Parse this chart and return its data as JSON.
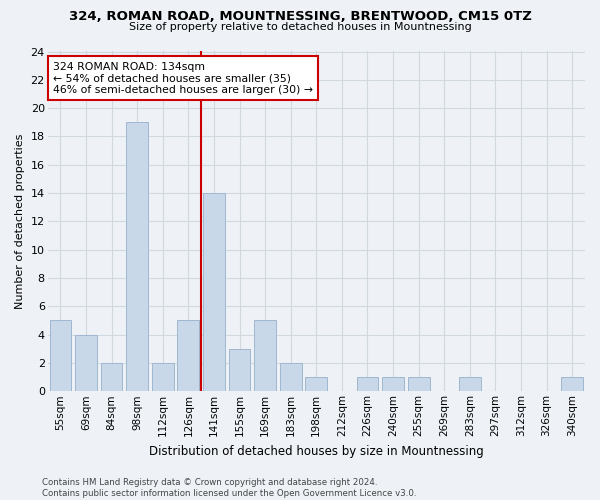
{
  "title1": "324, ROMAN ROAD, MOUNTNESSING, BRENTWOOD, CM15 0TZ",
  "title2": "Size of property relative to detached houses in Mountnessing",
  "xlabel_actual": "Distribution of detached houses by size in Mountnessing",
  "ylabel": "Number of detached properties",
  "categories": [
    "55sqm",
    "69sqm",
    "84sqm",
    "98sqm",
    "112sqm",
    "126sqm",
    "141sqm",
    "155sqm",
    "169sqm",
    "183sqm",
    "198sqm",
    "212sqm",
    "226sqm",
    "240sqm",
    "255sqm",
    "269sqm",
    "283sqm",
    "297sqm",
    "312sqm",
    "326sqm",
    "340sqm"
  ],
  "values": [
    5,
    4,
    2,
    19,
    2,
    5,
    14,
    3,
    5,
    2,
    1,
    0,
    1,
    1,
    1,
    0,
    1,
    0,
    0,
    0,
    1
  ],
  "bar_color": "#c8d8e8",
  "bar_edge_color": "#a0b8d0",
  "vline_color": "#cc0000",
  "annotation_text": "324 ROMAN ROAD: 134sqm\n← 54% of detached houses are smaller (35)\n46% of semi-detached houses are larger (30) →",
  "annotation_box_color": "white",
  "annotation_box_edge": "#cc0000",
  "ylim": [
    0,
    24
  ],
  "yticks": [
    0,
    2,
    4,
    6,
    8,
    10,
    12,
    14,
    16,
    18,
    20,
    22,
    24
  ],
  "grid_color": "#d0d8e0",
  "footer_text": "Contains HM Land Registry data © Crown copyright and database right 2024.\nContains public sector information licensed under the Open Government Licence v3.0.",
  "bg_color": "#eef2f7"
}
